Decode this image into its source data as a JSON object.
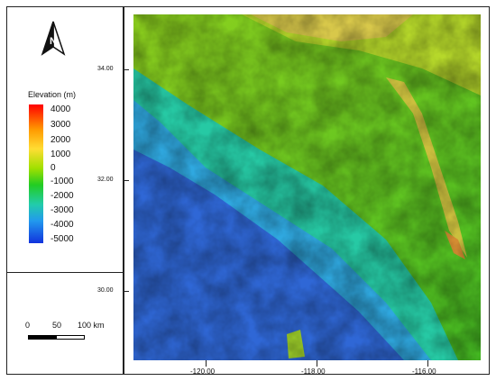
{
  "legend": {
    "title": "Elevation  (m)",
    "colorbar_labels": [
      "4000",
      "3000",
      "2000",
      "1000",
      "0",
      "-1000",
      "-2000",
      "-3000",
      "-4000",
      "-5000"
    ],
    "colors": [
      "#ff0000",
      "#ff9900",
      "#ffdd33",
      "#a0e000",
      "#22cc22",
      "#22ccaa",
      "#2299ee",
      "#1133dd"
    ]
  },
  "scale_bar": {
    "labels": [
      "0",
      "50",
      "100 km"
    ]
  },
  "axes": {
    "y_ticks": [
      "34.00",
      "32.00",
      "30.00"
    ],
    "x_ticks": [
      "-120.00",
      "-118.00",
      "-116.00"
    ]
  },
  "north_arrow": {
    "icon": "north-arrow-icon"
  }
}
